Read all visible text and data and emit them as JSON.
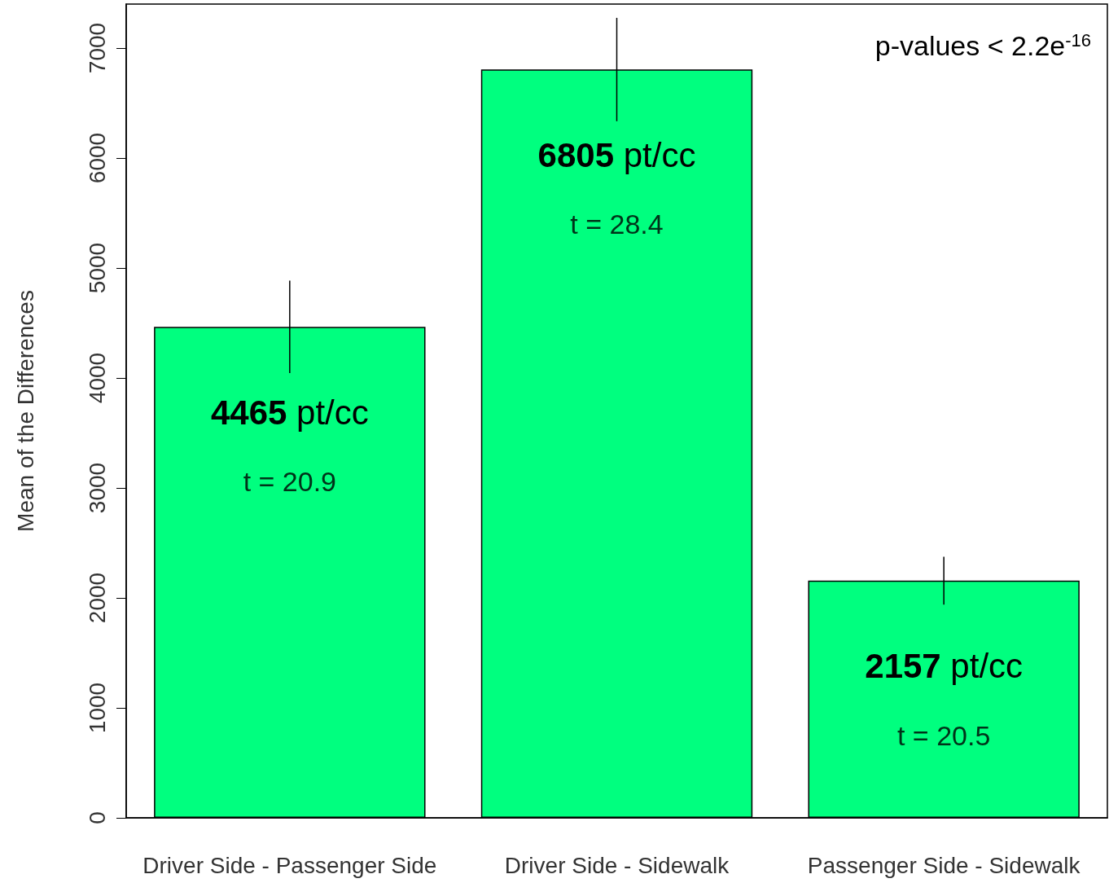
{
  "chart_data": {
    "type": "bar",
    "ylabel": "Mean of the Differences",
    "categories": [
      "Driver Side - Passenger Side",
      "Driver Side - Sidewalk",
      "Passenger Side - Sidewalk"
    ],
    "values": [
      4465,
      6805,
      2157
    ],
    "value_labels": [
      "4465 pt/cc",
      "6805 pt/cc",
      "2157 pt/cc"
    ],
    "errors": [
      420,
      470,
      218
    ],
    "color": "#00ff7f",
    "ylim": [
      0,
      7400
    ],
    "yticks": [
      0,
      1000,
      2000,
      3000,
      4000,
      5000,
      6000,
      7000
    ],
    "grid": false,
    "annotations": [
      "t = 20.9",
      "t = 28.4",
      "t = 20.5",
      "p-values < 2.2e$^{-16}$"
    ]
  }
}
